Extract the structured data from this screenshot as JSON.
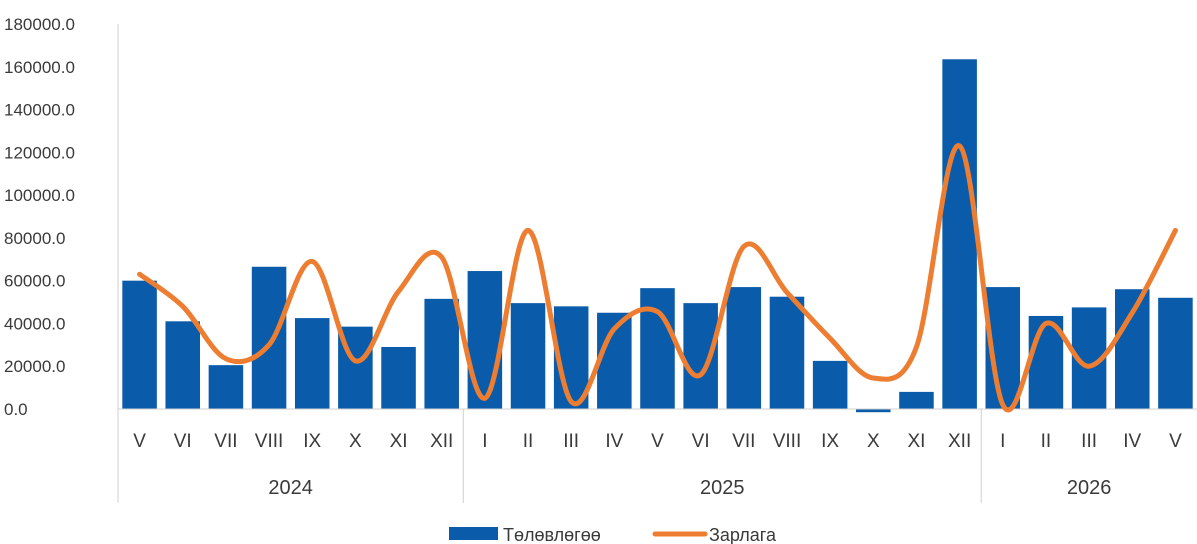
{
  "chart_data": {
    "type": "bar",
    "title": "",
    "xlabel": "",
    "ylabel": "",
    "ylim": [
      0,
      180000
    ],
    "yticks": [
      0,
      20000,
      40000,
      60000,
      80000,
      100000,
      120000,
      140000,
      160000,
      180000
    ],
    "ytick_labels": [
      "0.0",
      "20000.0",
      "40000.0",
      "60000.0",
      "80000.0",
      "100000.0",
      "120000.0",
      "140000.0",
      "160000.0",
      "180000.0"
    ],
    "categories": [
      "V",
      "VI",
      "VII",
      "VIII",
      "IX",
      "X",
      "XI",
      "XII",
      "I",
      "II",
      "III",
      "IV",
      "V",
      "VI",
      "VII",
      "VIII",
      "IX",
      "X",
      "XI",
      "XII",
      "I",
      "II",
      "III",
      "IV",
      "V"
    ],
    "year_groups": [
      {
        "label": "2024",
        "count": 8
      },
      {
        "label": "2025",
        "count": 12
      },
      {
        "label": "2026",
        "count": 5
      }
    ],
    "grid": false,
    "legend_position": "bottom",
    "series": [
      {
        "name": "Төлөвлөгөө",
        "type": "bar",
        "color": "#0A5BA9",
        "values": [
          60000,
          41000,
          20500,
          66500,
          42500,
          38500,
          29000,
          51500,
          64500,
          49500,
          48000,
          45000,
          56500,
          49500,
          57000,
          52500,
          22500,
          -1500,
          8000,
          163500,
          57000,
          43500,
          47500,
          56000,
          52000
        ]
      },
      {
        "name": "Зарлага",
        "type": "line",
        "color": "#ED7D31",
        "values": [
          63000,
          48000,
          23500,
          30000,
          69000,
          22500,
          55000,
          71000,
          5000,
          83500,
          3500,
          37500,
          45500,
          16000,
          76000,
          54500,
          33000,
          14500,
          29000,
          123000,
          2000,
          40000,
          20000,
          45000,
          83500
        ]
      }
    ]
  }
}
